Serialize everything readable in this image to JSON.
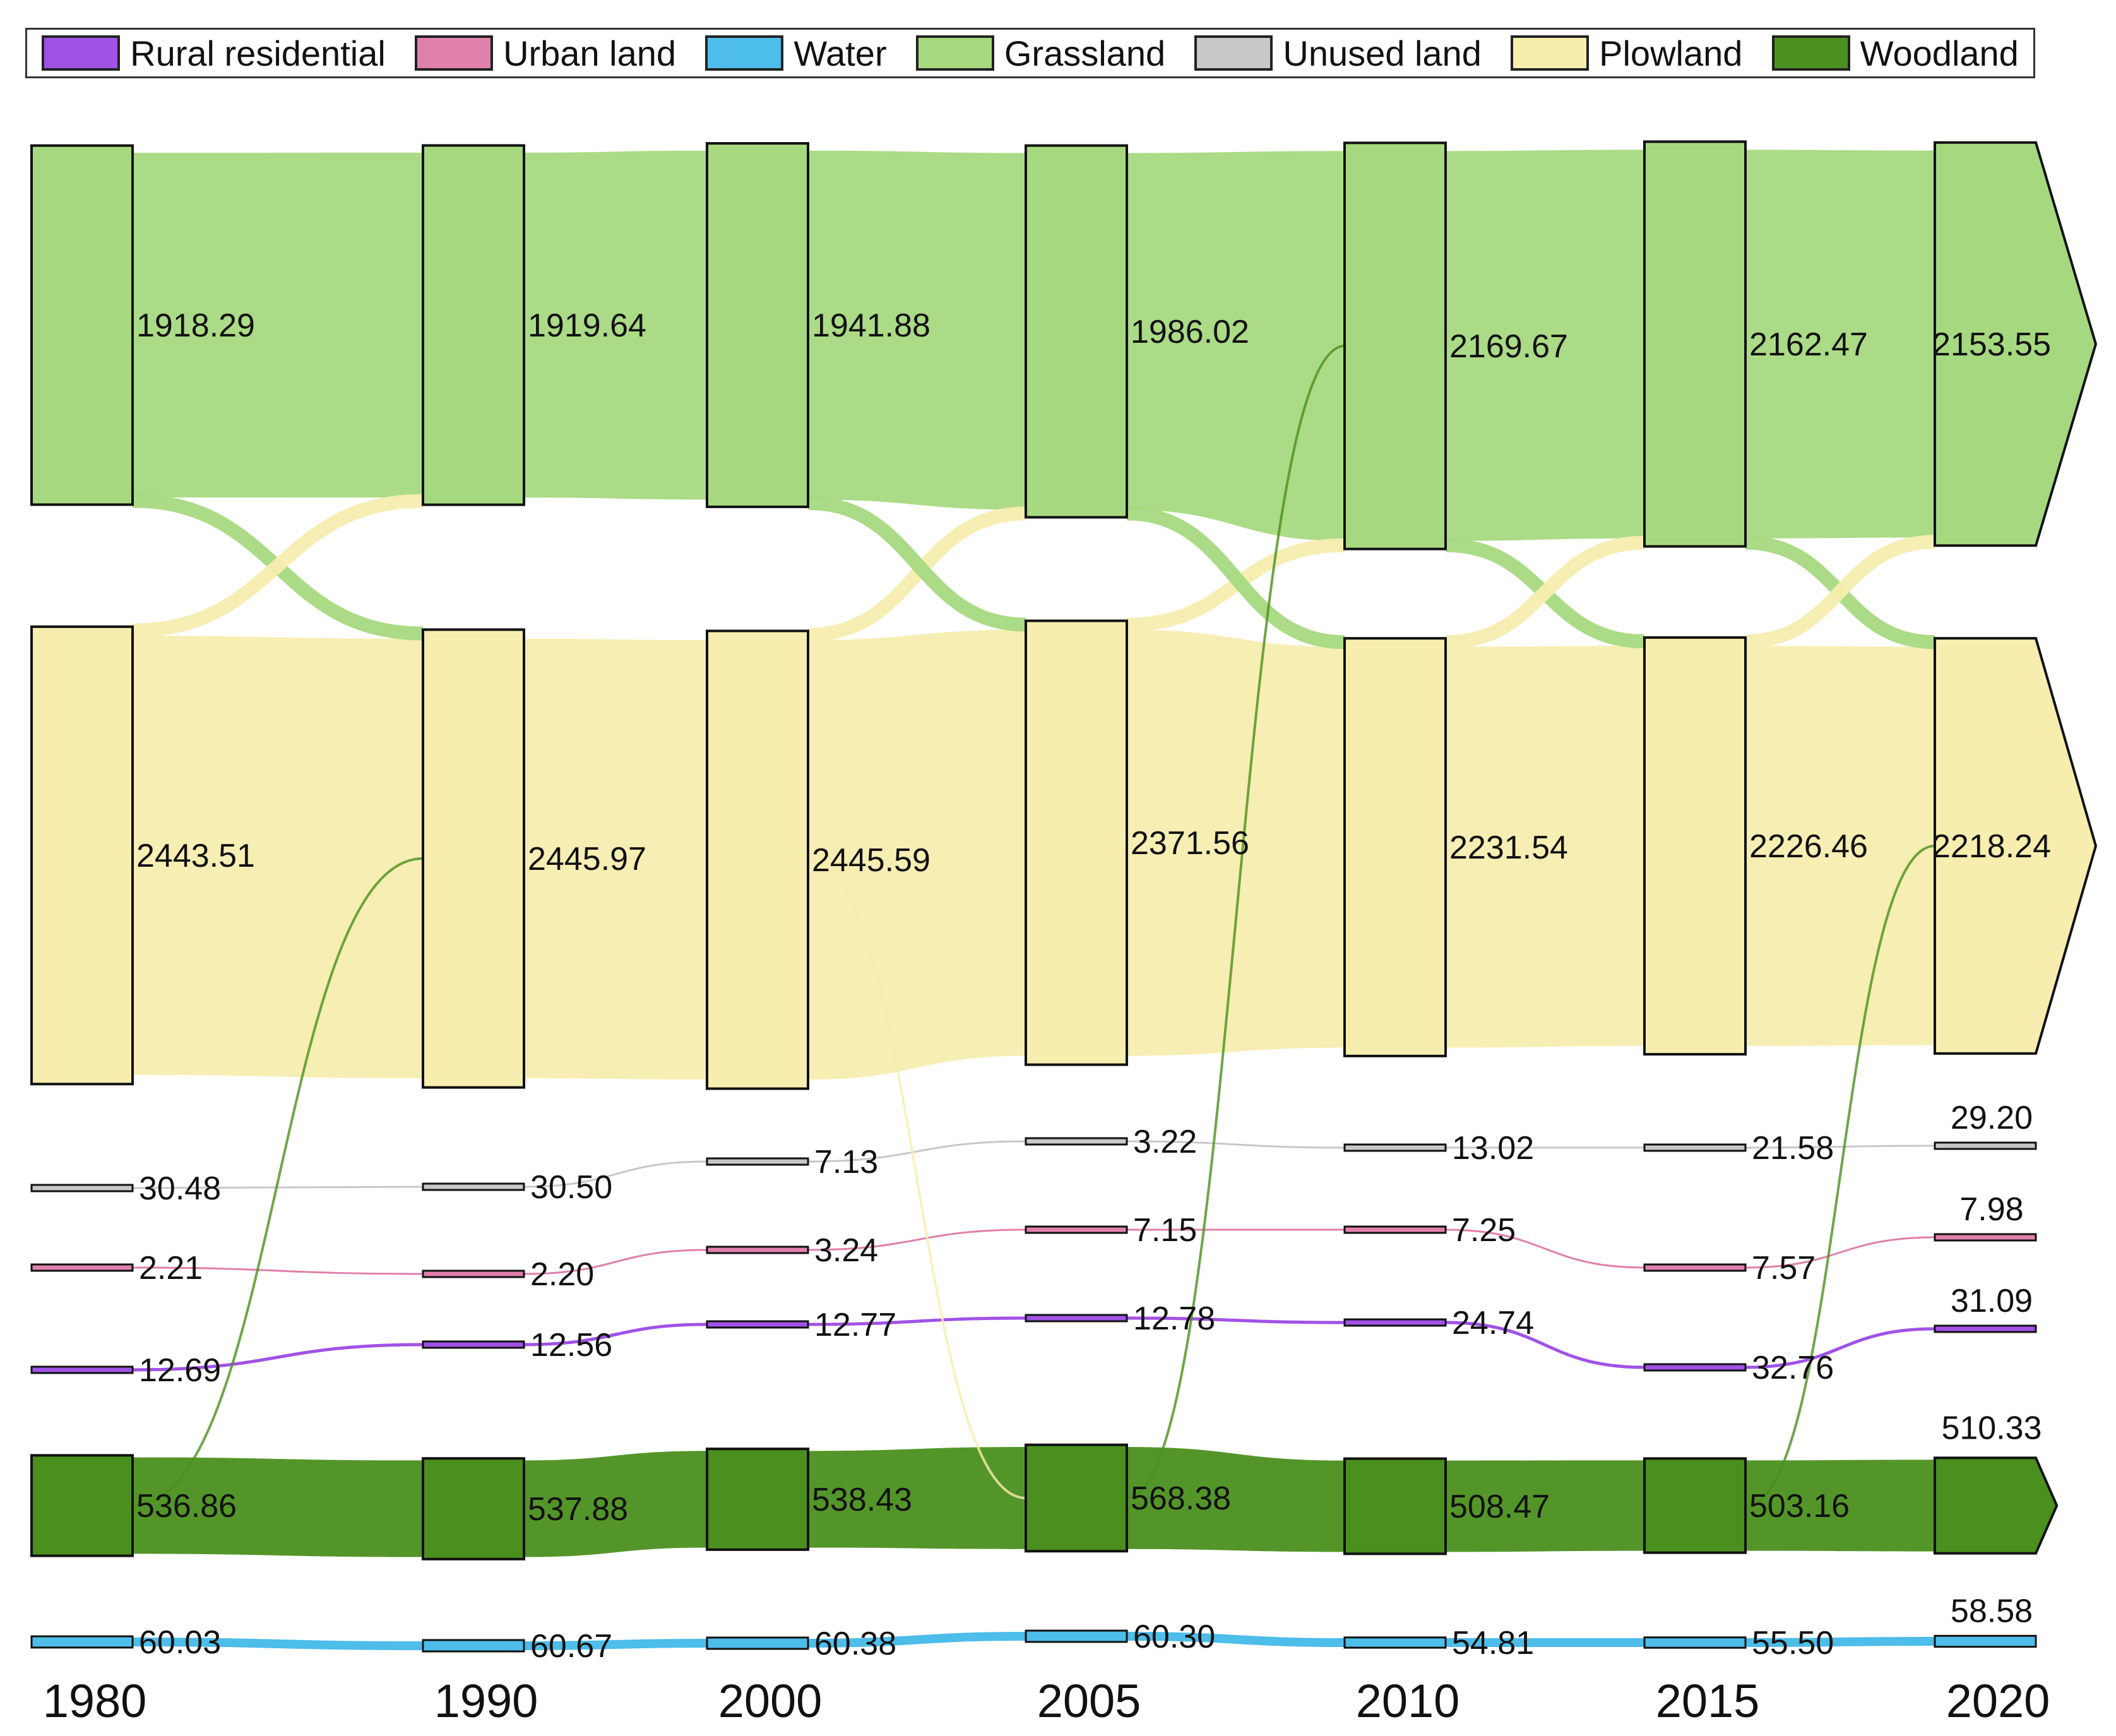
{
  "chart_data": {
    "type": "sankey",
    "title": "",
    "years": [
      "1980",
      "1990",
      "2000",
      "2005",
      "2010",
      "2015",
      "2020"
    ],
    "legend": [
      {
        "key": "rural",
        "label": "Rural residential",
        "color": "#a052e6"
      },
      {
        "key": "urban",
        "label": "Urban land",
        "color": "#e080ab"
      },
      {
        "key": "water",
        "label": "Water",
        "color": "#4dbde9"
      },
      {
        "key": "grassland",
        "label": "Grassland",
        "color": "#a6d97f"
      },
      {
        "key": "unused",
        "label": "Unused land",
        "color": "#c8c8c8"
      },
      {
        "key": "plowland",
        "label": "Plowland",
        "color": "#f6edaf"
      },
      {
        "key": "woodland",
        "label": "Woodland",
        "color": "#4b8f1e"
      }
    ],
    "series": [
      {
        "key": "grassland",
        "name": "Grassland",
        "values": [
          1918.29,
          1919.64,
          1941.88,
          1986.02,
          2169.67,
          2162.47,
          2153.55
        ],
        "labels": [
          "1918.29",
          "1919.64",
          "1941.88",
          "1986.02",
          "2169.67",
          "2162.47",
          "2153.55"
        ]
      },
      {
        "key": "plowland",
        "name": "Plowland",
        "values": [
          2443.51,
          2445.97,
          2445.59,
          2371.56,
          2231.54,
          2226.46,
          2218.24
        ],
        "labels": [
          "2443.51",
          "2445.97",
          "2445.59",
          "2371.56",
          "2231.54",
          "2226.46",
          "2218.24"
        ]
      },
      {
        "key": "unused",
        "name": "Unused land",
        "values": [
          30.48,
          30.5,
          7.13,
          3.22,
          13.02,
          21.58,
          29.2
        ],
        "labels": [
          "30.48",
          "30.50",
          "7.13",
          "3.22",
          "13.02",
          "21.58",
          "29.20"
        ]
      },
      {
        "key": "urban",
        "name": "Urban land",
        "values": [
          2.21,
          2.2,
          3.24,
          7.15,
          7.25,
          7.57,
          7.98
        ],
        "labels": [
          "2.21",
          "2.20",
          "3.24",
          "7.15",
          "7.25",
          "7.57",
          "7.98"
        ]
      },
      {
        "key": "rural",
        "name": "Rural residential",
        "values": [
          12.69,
          12.56,
          12.77,
          12.78,
          24.74,
          32.76,
          31.09
        ],
        "labels": [
          "12.69",
          "12.56",
          "12.77",
          "12.78",
          "24.74",
          "32.76",
          "31.09"
        ]
      },
      {
        "key": "woodland",
        "name": "Woodland",
        "values": [
          536.86,
          537.88,
          538.43,
          568.38,
          508.47,
          503.16,
          510.33
        ],
        "labels": [
          "536.86",
          "537.88",
          "538.43",
          "568.38",
          "508.47",
          "503.16",
          "510.33"
        ]
      },
      {
        "key": "water",
        "name": "Water",
        "values": [
          60.03,
          60.67,
          60.38,
          60.3,
          54.81,
          55.5,
          58.58
        ],
        "labels": [
          "60.03",
          "60.67",
          "60.38",
          "60.30",
          "54.81",
          "55.50",
          "58.58"
        ]
      }
    ],
    "cross_flows": [
      {
        "from": "grassland",
        "to": "plowland",
        "years": [
          "1980",
          "1990"
        ]
      },
      {
        "from": "plowland",
        "to": "grassland",
        "years": [
          "1980",
          "1990"
        ]
      },
      {
        "from": "plowland",
        "to": "grassland",
        "years": [
          "2000",
          "2005"
        ]
      },
      {
        "from": "grassland",
        "to": "plowland",
        "years": [
          "2000",
          "2005"
        ]
      },
      {
        "from": "plowland",
        "to": "grassland",
        "years": [
          "2005",
          "2010"
        ]
      },
      {
        "from": "grassland",
        "to": "plowland",
        "years": [
          "2005",
          "2010"
        ]
      },
      {
        "from": "woodland",
        "to": "grassland",
        "years": [
          "2005",
          "2010"
        ]
      },
      {
        "from": "grassland",
        "to": "plowland",
        "years": [
          "2010",
          "2015"
        ]
      },
      {
        "from": "plowland",
        "to": "grassland",
        "years": [
          "2010",
          "2015"
        ]
      },
      {
        "from": "grassland",
        "to": "plowland",
        "years": [
          "2015",
          "2020"
        ]
      },
      {
        "from": "plowland",
        "to": "grassland",
        "years": [
          "2015",
          "2020"
        ]
      },
      {
        "from": "woodland",
        "to": "plowland",
        "years": [
          "1980",
          "1990"
        ]
      },
      {
        "from": "plowland",
        "to": "woodland",
        "years": [
          "2000",
          "2005"
        ]
      },
      {
        "from": "woodland",
        "to": "plowland",
        "years": [
          "2015",
          "2020"
        ]
      }
    ]
  }
}
